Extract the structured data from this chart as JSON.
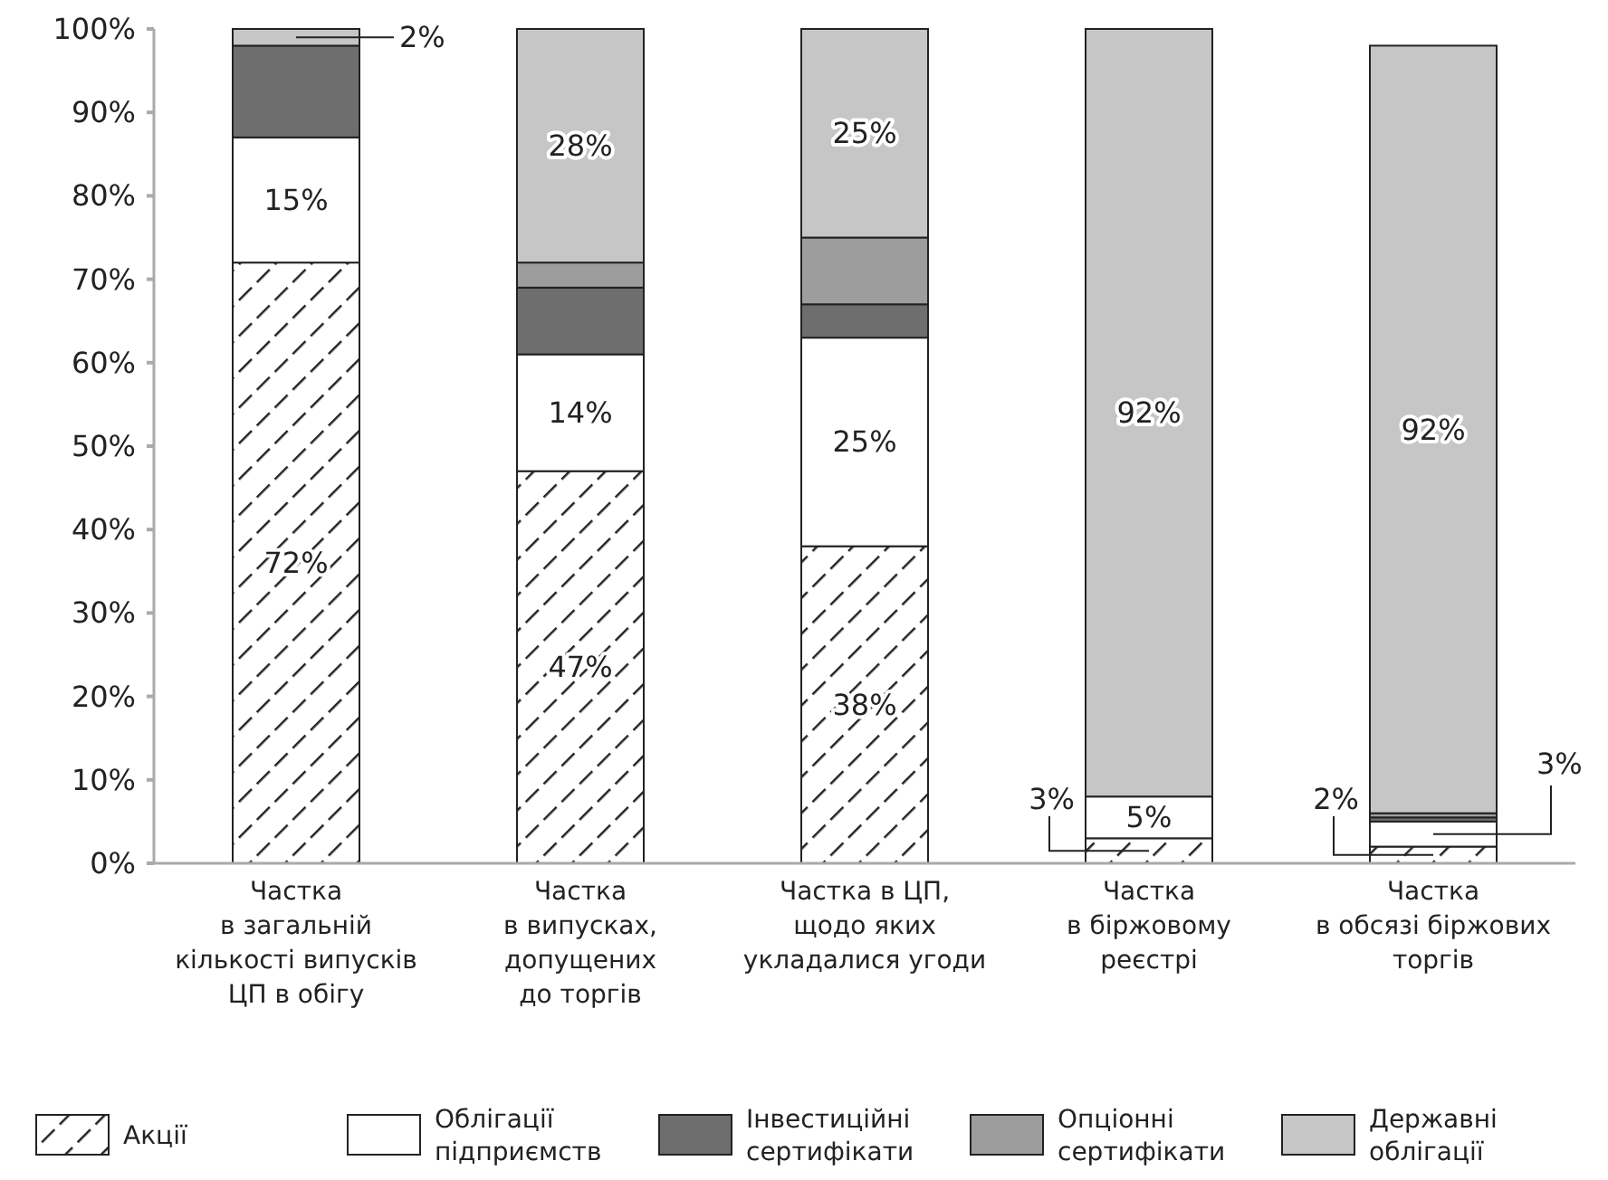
{
  "chart_data": {
    "type": "bar",
    "stacked": true,
    "categories": [
      "Частка\nв загальній\nкількості випусків\nЦП в обігу",
      "Частка\nв випусках,\nдопущених\nдо торгів",
      "Частка в ЦП,\nщодо яких\nукладалися угоди",
      "Частка\nв біржовому\nреєстрі",
      "Частка\nв обсязі біржових\nторгів"
    ],
    "series": [
      {
        "name": "Акції",
        "color": "#222222",
        "values": [
          72,
          47,
          38,
          3,
          2
        ],
        "value_labels": [
          "72%",
          "47%",
          "38%",
          "3%",
          "2%"
        ]
      },
      {
        "name": "Облігації підприємств",
        "color": "#ffffff",
        "values": [
          15,
          14,
          25,
          5,
          3
        ],
        "value_labels": [
          "15%",
          "14%",
          "25%",
          "5%",
          "3%"
        ]
      },
      {
        "name": "Інвестиційні сертифікати",
        "color": "#6e6e6e",
        "values": [
          11,
          8,
          4,
          0,
          0.5
        ],
        "value_labels": [
          null,
          null,
          null,
          null,
          null
        ]
      },
      {
        "name": "Опціонні сертифікати",
        "color": "#9d9d9d",
        "values": [
          0,
          3,
          8,
          0,
          0.5
        ],
        "value_labels": [
          null,
          null,
          null,
          null,
          null
        ]
      },
      {
        "name": "Державні облігації",
        "color": "#c6c6c6",
        "values": [
          2,
          28,
          25,
          92,
          92
        ],
        "value_labels": [
          "2%",
          "28%",
          "25%",
          "92%",
          "92%"
        ]
      }
    ],
    "ylim": [
      0,
      100
    ],
    "yticks": [
      {
        "value": 0,
        "label": "0%"
      },
      {
        "value": 10,
        "label": "10%"
      },
      {
        "value": 20,
        "label": "20%"
      },
      {
        "value": 30,
        "label": "30%"
      },
      {
        "value": 40,
        "label": "40%"
      },
      {
        "value": 50,
        "label": "50%"
      },
      {
        "value": 60,
        "label": "60%"
      },
      {
        "value": 70,
        "label": "70%"
      },
      {
        "value": 80,
        "label": "80%"
      },
      {
        "value": 90,
        "label": "90%"
      },
      {
        "value": 100,
        "label": "100%"
      }
    ],
    "grid": false,
    "legend": "bottom"
  }
}
